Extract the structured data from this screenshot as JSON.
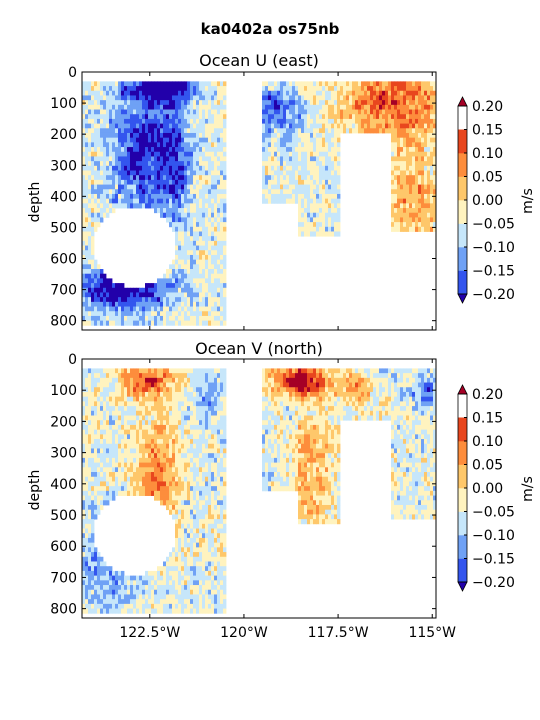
{
  "suptitle": "ka0402a os75nb",
  "chart_data": [
    {
      "type": "heatmap",
      "title": "Ocean U (east)",
      "ylabel": "depth",
      "xlim": [
        -124.3,
        -114.9
      ],
      "ylim": [
        830,
        0
      ],
      "xticks": [
        -122.5,
        -120,
        -117.5,
        -115
      ],
      "xtick_labels": [
        "122.5°W",
        "120°W",
        "117.5°W",
        "115°W"
      ],
      "yticks": [
        0,
        100,
        200,
        300,
        400,
        500,
        600,
        700,
        800
      ],
      "colorbar": {
        "label": "m/s",
        "levels": [
          -0.2,
          -0.15,
          -0.1,
          -0.05,
          0,
          0.05,
          0.1,
          0.15,
          0.2
        ],
        "tick_labels": [
          "−0.20",
          "−0.15",
          "−0.10",
          "−0.05",
          "0.00",
          "0.05",
          "0.10",
          "0.15",
          "0.20"
        ],
        "colors": [
          "#2200aa",
          "#3355ee",
          "#6fa1f5",
          "#c6e6fa",
          "#fff3bf",
          "#fec76a",
          "#fd8d3c",
          "#e8461e",
          "#a50026"
        ]
      }
    },
    {
      "type": "heatmap",
      "title": "Ocean V (north)",
      "ylabel": "depth",
      "xlim": [
        -124.3,
        -114.9
      ],
      "ylim": [
        830,
        0
      ],
      "xticks": [
        -122.5,
        -120,
        -117.5,
        -115
      ],
      "xtick_labels": [
        "122.5°W",
        "120°W",
        "117.5°W",
        "115°W"
      ],
      "yticks": [
        0,
        100,
        200,
        300,
        400,
        500,
        600,
        700,
        800
      ],
      "colorbar": {
        "label": "m/s",
        "levels": [
          -0.2,
          -0.15,
          -0.1,
          -0.05,
          0,
          0.05,
          0.1,
          0.15,
          0.2
        ],
        "tick_labels": [
          "−0.20",
          "−0.15",
          "−0.10",
          "−0.05",
          "0.00",
          "0.05",
          "0.10",
          "0.15",
          "0.20"
        ],
        "colors": [
          "#2200aa",
          "#3355ee",
          "#6fa1f5",
          "#c6e6fa",
          "#fff3bf",
          "#fec76a",
          "#fd8d3c",
          "#e8461e",
          "#a50026"
        ]
      }
    }
  ]
}
